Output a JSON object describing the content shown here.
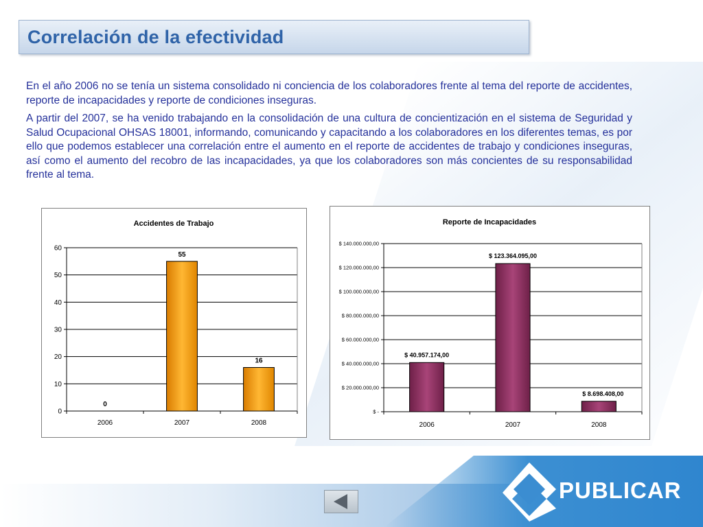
{
  "slide": {
    "title": "Correlación de la efectividad",
    "paragraphs": [
      "En el año 2006 no se tenía un sistema consolidado ni conciencia de los colaboradores frente al tema del reporte de accidentes, reporte de incapacidades y reporte de condiciones inseguras.",
      "A partir del 2007, se ha venido trabajando en la consolidación de una cultura de concientización en el sistema de Seguridad y Salud Ocupacional OHSAS 18001, informando, comunicando y capacitando a los colaboradores en los diferentes temas, es por ello que podemos establecer una correlación entre el aumento en el reporte de accidentes de trabajo y condiciones inseguras, así como el aumento del recobro de las incapacidades, ya que los colaboradores son más concientes de su responsabilidad frente al tema."
    ]
  },
  "logo": {
    "text": "PUBLICAR",
    "icon": "publicar-logo-icon"
  },
  "nav": {
    "back_icon": "back-arrow-icon"
  },
  "colors": {
    "title": "#2f63a8",
    "body_text": "#24309a",
    "bar_orange": "#f59a0c",
    "bar_maroon": "#8b2f5e"
  },
  "chart_data": [
    {
      "type": "bar",
      "title": "Accidentes de Trabajo",
      "categories": [
        "2006",
        "2007",
        "2008"
      ],
      "values": [
        0,
        55,
        16
      ],
      "data_labels": [
        "0",
        "55",
        "16"
      ],
      "ylim": [
        0,
        60
      ],
      "yticks": [
        0,
        10,
        20,
        30,
        40,
        50,
        60
      ],
      "ytick_labels": [
        "0",
        "10",
        "20",
        "30",
        "40",
        "50",
        "60"
      ],
      "xlabel": "",
      "ylabel": "",
      "grid": true,
      "legend": "none"
    },
    {
      "type": "bar",
      "title": "Reporte de Incapacidades",
      "categories": [
        "2006",
        "2007",
        "2008"
      ],
      "values": [
        40957174,
        123364095,
        8698408
      ],
      "data_labels": [
        "$ 40.957.174,00",
        "$ 123.364.095,00",
        "$ 8.698.408,00"
      ],
      "ylim": [
        0,
        140000000
      ],
      "yticks": [
        0,
        20000000,
        40000000,
        60000000,
        80000000,
        100000000,
        120000000,
        140000000
      ],
      "ytick_labels": [
        "$ -",
        "$ 20.000.000,00",
        "$ 40.000.000,00",
        "$ 60.000.000,00",
        "$ 80.000.000,00",
        "$ 100.000.000,00",
        "$ 120.000.000,00",
        "$ 140.000.000,00"
      ],
      "xlabel": "",
      "ylabel": "",
      "grid": true,
      "legend": "none"
    }
  ]
}
